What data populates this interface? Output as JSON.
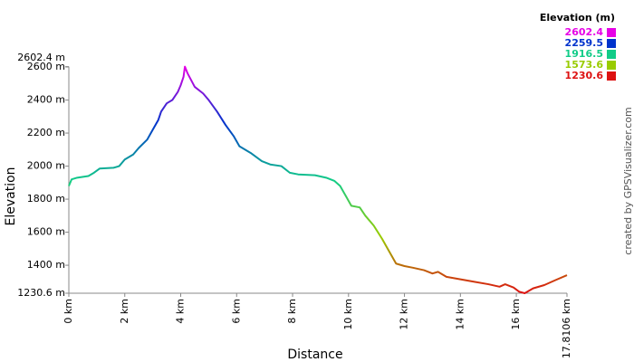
{
  "chart_data": {
    "type": "line",
    "x_label": "Distance",
    "y_label": "Elevation",
    "credit": "created by GPSVisualizer.com",
    "x": [
      0,
      0.1,
      0.3,
      0.7,
      0.9,
      1.1,
      1.6,
      1.8,
      2.0,
      2.3,
      2.5,
      2.8,
      3.0,
      3.2,
      3.3,
      3.5,
      3.7,
      3.9,
      4.0,
      4.1,
      4.15,
      4.25,
      4.5,
      4.8,
      5.0,
      5.3,
      5.6,
      5.9,
      6.1,
      6.5,
      6.9,
      7.2,
      7.6,
      7.9,
      8.2,
      8.8,
      9.2,
      9.5,
      9.7,
      9.9,
      10.1,
      10.4,
      10.6,
      10.9,
      11.2,
      11.4,
      11.7,
      12.0,
      12.3,
      12.7,
      13.0,
      13.2,
      13.5,
      14.0,
      14.5,
      15.0,
      15.4,
      15.6,
      15.9,
      16.1,
      16.3,
      16.6,
      17.0,
      17.4,
      17.8106
    ],
    "values": [
      1880,
      1920,
      1930,
      1940,
      1960,
      1985,
      1990,
      2000,
      2040,
      2070,
      2110,
      2160,
      2220,
      2280,
      2330,
      2380,
      2400,
      2450,
      2490,
      2540,
      2602.4,
      2560,
      2480,
      2440,
      2400,
      2330,
      2250,
      2180,
      2120,
      2080,
      2030,
      2010,
      2000,
      1960,
      1950,
      1945,
      1930,
      1910,
      1880,
      1820,
      1760,
      1750,
      1700,
      1640,
      1560,
      1500,
      1410,
      1395,
      1385,
      1370,
      1350,
      1360,
      1330,
      1315,
      1300,
      1285,
      1270,
      1285,
      1265,
      1240,
      1230.6,
      1260,
      1280,
      1310,
      1340
    ],
    "xlim": [
      0,
      17.8106
    ],
    "ylim": [
      1230.6,
      2602.4
    ],
    "xticks": [
      {
        "value": 0,
        "label": "0 km"
      },
      {
        "value": 2,
        "label": "2 km"
      },
      {
        "value": 4,
        "label": "4 km"
      },
      {
        "value": 6,
        "label": "6 km"
      },
      {
        "value": 8,
        "label": "8 km"
      },
      {
        "value": 10,
        "label": "10 km"
      },
      {
        "value": 12,
        "label": "12 km"
      },
      {
        "value": 14,
        "label": "14 km"
      },
      {
        "value": 16,
        "label": "16 km"
      },
      {
        "value": 17.8106,
        "label": "17.8106 km"
      }
    ],
    "yticks": [
      {
        "value": 1230.6,
        "label": "1230.6 m"
      },
      {
        "value": 1400,
        "label": "1400 m"
      },
      {
        "value": 1600,
        "label": "1600 m"
      },
      {
        "value": 1800,
        "label": "1800 m"
      },
      {
        "value": 2000,
        "label": "2000 m"
      },
      {
        "value": 2200,
        "label": "2200 m"
      },
      {
        "value": 2400,
        "label": "2400 m"
      },
      {
        "value": 2600,
        "label": "2600 m"
      },
      {
        "value": 2602.4,
        "label": "2602.4 m"
      }
    ],
    "grid": false,
    "legend": {
      "title": "Elevation (m)",
      "entries": [
        {
          "value": 2602.4,
          "color": "#e600e6"
        },
        {
          "value": 2259.5,
          "color": "#0033cc"
        },
        {
          "value": 1916.5,
          "color": "#11cc88"
        },
        {
          "value": 1573.6,
          "color": "#99cc00"
        },
        {
          "value": 1230.6,
          "color": "#dd1111"
        }
      ]
    }
  }
}
